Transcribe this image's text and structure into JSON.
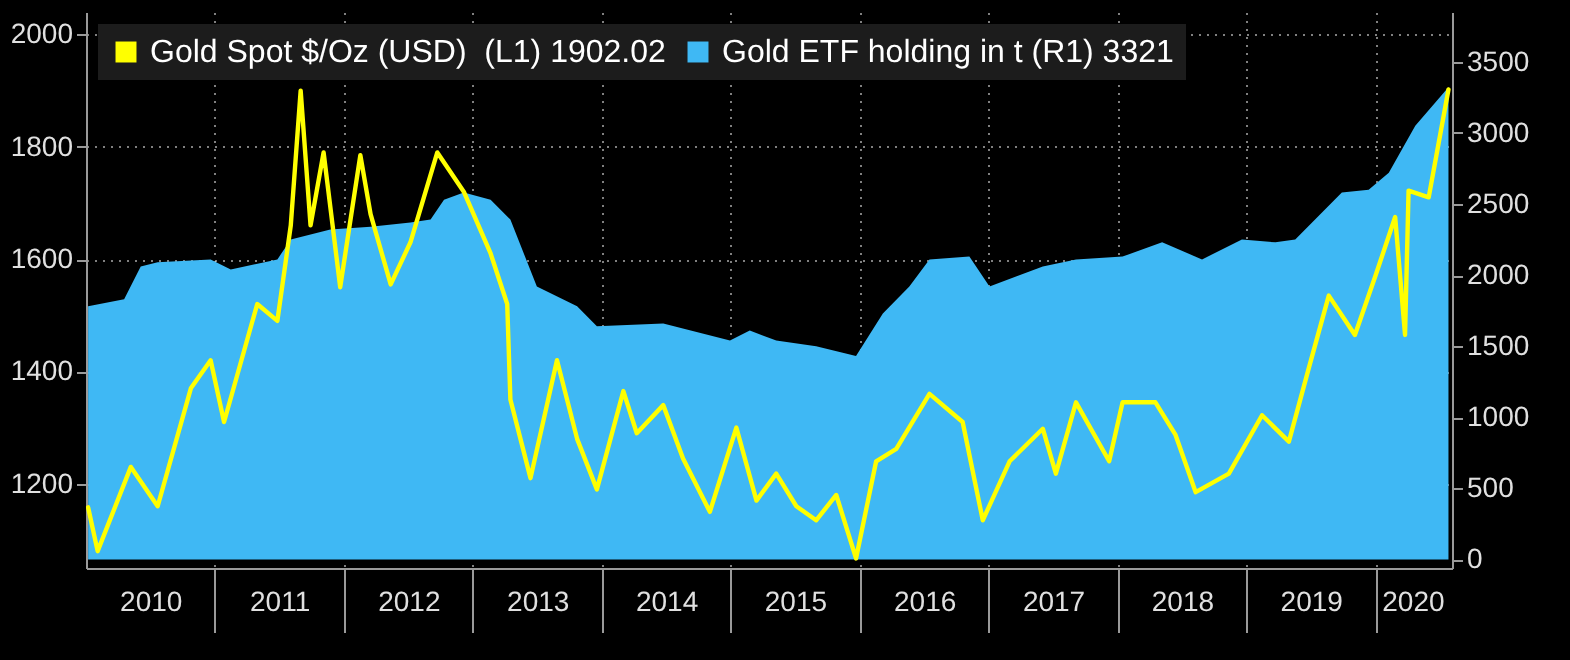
{
  "chart_data": {
    "type": "line",
    "grid": true,
    "legend": "top left",
    "xlim": [
      "2010-01-01",
      "2020-08-05"
    ],
    "xticks": [
      {
        "value": "2010-07-02",
        "label": "2010"
      },
      {
        "value": "2011-01-01",
        "label": null
      },
      {
        "value": "2011-07-02",
        "label": "2011"
      },
      {
        "value": "2012-01-01",
        "label": null
      },
      {
        "value": "2012-07-02",
        "label": "2012"
      },
      {
        "value": "2013-01-01",
        "label": null
      },
      {
        "value": "2013-07-02",
        "label": "2013"
      },
      {
        "value": "2014-01-01",
        "label": null
      },
      {
        "value": "2014-07-02",
        "label": "2014"
      },
      {
        "value": "2015-01-01",
        "label": null
      },
      {
        "value": "2015-07-02",
        "label": "2015"
      },
      {
        "value": "2016-01-01",
        "label": null
      },
      {
        "value": "2016-07-02",
        "label": "2016"
      },
      {
        "value": "2017-01-01",
        "label": null
      },
      {
        "value": "2017-07-02",
        "label": "2017"
      },
      {
        "value": "2018-01-01",
        "label": null
      },
      {
        "value": "2018-07-02",
        "label": "2018"
      },
      {
        "value": "2019-01-01",
        "label": null
      },
      {
        "value": "2019-07-02",
        "label": "2019"
      },
      {
        "value": "2020-01-01",
        "label": null
      },
      {
        "value": "2020-04-15",
        "label": "2020"
      }
    ],
    "ylim": [
      1050,
      2040
    ],
    "yticks": [
      1200,
      1400,
      1600,
      1800,
      2000
    ],
    "y2lim": [
      -60,
      3850
    ],
    "y2ticks": [
      0,
      500,
      1000,
      1500,
      2000,
      2500,
      3000,
      3500
    ],
    "series": [
      {
        "name": "Gold ETF holding in t (R1) 3321",
        "type": "area",
        "axis": "y2",
        "color": "#3fb8f4",
        "x": [
          "2010-01-07",
          "2010-04-19",
          "2010-06-05",
          "2010-07-23",
          "2010-12-20",
          "2011-02-15",
          "2011-06-27",
          "2011-08-04",
          "2011-11-24",
          "2012-03-17",
          "2012-07-08",
          "2012-09-03",
          "2012-10-11",
          "2012-12-06",
          "2013-02-20",
          "2013-04-17",
          "2013-07-01",
          "2013-10-23",
          "2013-12-18",
          "2014-06-24",
          "2014-12-30",
          "2015-02-24",
          "2015-05-10",
          "2015-08-31",
          "2015-12-22",
          "2016-03-07",
          "2016-05-21",
          "2016-07-17",
          "2016-11-07",
          "2017-01-03",
          "2017-06-03",
          "2017-09-05",
          "2018-01-15",
          "2018-05-07",
          "2018-08-28",
          "2018-12-19",
          "2019-03-24",
          "2019-05-19",
          "2019-09-28",
          "2019-12-13",
          "2020-02-08",
          "2020-04-23",
          "2020-07-26"
        ],
        "values": [
          1780,
          1830,
          2060,
          2090,
          2110,
          2040,
          2110,
          2250,
          2320,
          2340,
          2370,
          2390,
          2530,
          2580,
          2530,
          2390,
          1920,
          1780,
          1640,
          1660,
          1540,
          1610,
          1540,
          1500,
          1430,
          1730,
          1920,
          2110,
          2130,
          1920,
          2060,
          2110,
          2130,
          2230,
          2110,
          2250,
          2230,
          2250,
          2580,
          2600,
          2720,
          3050,
          3321
        ]
      },
      {
        "name": "Gold Spot $/Oz (USD)  (L1) 1902.02",
        "type": "line",
        "color": "#ffff00",
        "x": [
          "2010-01-07",
          "2010-02-03",
          "2010-05-08",
          "2010-07-23",
          "2010-10-25",
          "2010-12-20",
          "2011-01-27",
          "2011-05-01",
          "2011-06-27",
          "2011-08-04",
          "2011-09-01",
          "2011-09-29",
          "2011-11-05",
          "2011-12-22",
          "2012-02-17",
          "2012-03-17",
          "2012-05-13",
          "2012-07-08",
          "2012-09-22",
          "2012-12-06",
          "2013-02-20",
          "2013-04-08",
          "2013-04-17",
          "2013-06-13",
          "2013-08-27",
          "2013-10-23",
          "2013-12-18",
          "2014-03-03",
          "2014-04-10",
          "2014-06-24",
          "2014-08-19",
          "2014-11-03",
          "2015-01-17",
          "2015-03-15",
          "2015-05-10",
          "2015-07-06",
          "2015-08-31",
          "2015-10-27",
          "2015-12-22",
          "2016-02-17",
          "2016-04-14",
          "2016-07-17",
          "2016-10-19",
          "2016-12-15",
          "2017-03-01",
          "2017-06-03",
          "2017-07-10",
          "2017-09-05",
          "2017-12-08",
          "2018-01-15",
          "2018-04-18",
          "2018-06-14",
          "2018-08-10",
          "2018-11-12",
          "2019-02-14",
          "2019-05-01",
          "2019-06-26",
          "2019-08-22",
          "2019-11-04",
          "2020-01-01",
          "2020-02-26",
          "2020-03-25",
          "2020-04-04",
          "2020-05-31",
          "2020-07-26"
        ],
        "values": [
          1158,
          1080,
          1230,
          1160,
          1370,
          1420,
          1310,
          1520,
          1490,
          1660,
          1900,
          1660,
          1790,
          1550,
          1785,
          1680,
          1555,
          1630,
          1790,
          1720,
          1610,
          1520,
          1350,
          1210,
          1420,
          1280,
          1190,
          1365,
          1290,
          1340,
          1245,
          1150,
          1300,
          1170,
          1218,
          1160,
          1135,
          1180,
          1067,
          1240,
          1262,
          1360,
          1310,
          1135,
          1240,
          1298,
          1218,
          1345,
          1240,
          1345,
          1345,
          1287,
          1185,
          1218,
          1322,
          1275,
          1405,
          1535,
          1465,
          1570,
          1675,
          1465,
          1722,
          1710,
          1902
        ]
      }
    ]
  }
}
